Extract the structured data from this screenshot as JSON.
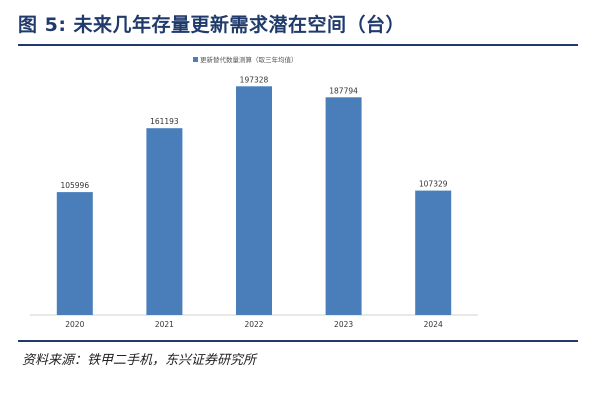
{
  "header": {
    "title": "图 5: 未来几年存量更新需求潜在空间（台）"
  },
  "footer": {
    "source": "资料来源：铁甲二手机，东兴证券研究所"
  },
  "colors": {
    "bar": "#4a7ebb",
    "accent": "#1f3a6b"
  },
  "chart_data": {
    "type": "bar",
    "title": "",
    "xlabel": "",
    "ylabel": "",
    "categories": [
      "2020",
      "2021",
      "2022",
      "2023",
      "2024"
    ],
    "series": [
      {
        "name": "更新替代数量测算（取三年均值）",
        "values": [
          105996,
          161193,
          197328,
          187794,
          107329
        ]
      }
    ],
    "ylim": [
      0,
      220000
    ],
    "grid": false,
    "legend": "top-center",
    "data_labels": true
  }
}
